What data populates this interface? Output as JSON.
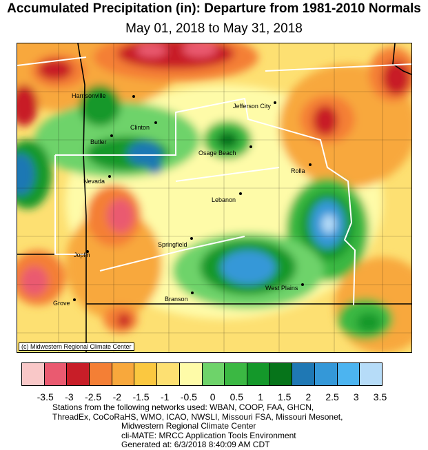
{
  "header": {
    "title": "Accumulated Precipitation (in): Departure from 1981-2010 Normals",
    "subtitle": "May 01, 2018 to May 31, 2018"
  },
  "map": {
    "credit": "(c) Midwestern Regional Climate Center",
    "cities": [
      {
        "name": "Harrisonville"
      },
      {
        "name": "Butler"
      },
      {
        "name": "Clinton"
      },
      {
        "name": "Jefferson City"
      },
      {
        "name": "Osage Beach"
      },
      {
        "name": "Rolla"
      },
      {
        "name": "Nevada"
      },
      {
        "name": "Lebanon"
      },
      {
        "name": "Springfield"
      },
      {
        "name": "Joplin"
      },
      {
        "name": "Grove"
      },
      {
        "name": "Branson"
      },
      {
        "name": "West Plains"
      }
    ]
  },
  "legend": {
    "colors": [
      "#f9c8c8",
      "#ea5a70",
      "#c81e28",
      "#f47f35",
      "#f8a83c",
      "#fbc840",
      "#fde072",
      "#fefba8",
      "#6ed36a",
      "#3bb843",
      "#14982a",
      "#06741a",
      "#1f78b4",
      "#3498d8",
      "#4cb4f0",
      "#b6dcf8"
    ],
    "ticks": [
      "-3.5",
      "-3",
      "-2.5",
      "-2",
      "-1.5",
      "-1",
      "-0.5",
      "0",
      "0.5",
      "1",
      "1.5",
      "2",
      "2.5",
      "3",
      "3.5"
    ]
  },
  "footer": {
    "line1": "Stations from the following networks used: WBAN, COOP, FAA, GHCN,",
    "line2": "ThreadEx, CoCoRaHS, WMO, ICAO, NWSLI, Missouri FSA, Missouri Mesonet,",
    "line3": "Midwestern Regional Climate Center",
    "line4": "cli-MATE: MRCC Application Tools Environment",
    "line5": "Generated at: 6/3/2018 8:40:09 AM CDT"
  }
}
